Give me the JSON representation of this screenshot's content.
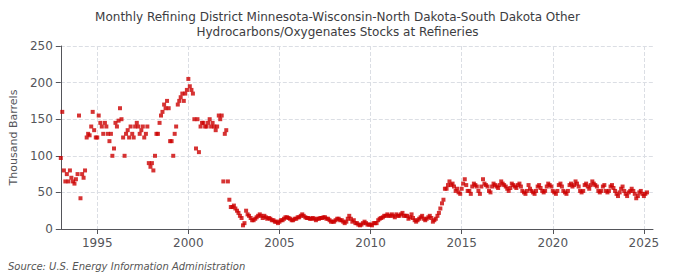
{
  "chart_data": {
    "type": "scatter",
    "title": "Monthly Refining District Minnesota-Wisconsin-North Dakota-South Dakota Other\nHydrocarbons/Oxygenates Stocks at Refineries",
    "ylabel": "Thousand Barrels",
    "annotations": [
      "Source: U.S. Energy Information Administration"
    ],
    "color": "#cc0000",
    "marker": "square",
    "grid": true,
    "xlim": [
      1993.0,
      2025.5
    ],
    "ylim": [
      0,
      250
    ],
    "xticks": [
      1995,
      2000,
      2005,
      2010,
      2015,
      2020,
      2025
    ],
    "yticks": [
      0,
      50,
      100,
      150,
      200,
      250
    ],
    "x": [
      1993.0,
      1993.08,
      1993.17,
      1993.25,
      1993.33,
      1993.42,
      1993.5,
      1993.58,
      1993.67,
      1993.75,
      1993.83,
      1993.92,
      1994.0,
      1994.08,
      1994.17,
      1994.25,
      1994.33,
      1994.42,
      1994.5,
      1994.58,
      1994.67,
      1994.75,
      1994.83,
      1994.92,
      1995.0,
      1995.08,
      1995.17,
      1995.25,
      1995.33,
      1995.42,
      1995.5,
      1995.58,
      1995.67,
      1995.75,
      1995.83,
      1995.92,
      1996.0,
      1996.08,
      1996.17,
      1996.25,
      1996.33,
      1996.42,
      1996.5,
      1996.58,
      1996.67,
      1996.75,
      1996.83,
      1996.92,
      1997.0,
      1997.08,
      1997.17,
      1997.25,
      1997.33,
      1997.42,
      1997.5,
      1997.58,
      1997.67,
      1997.75,
      1997.83,
      1997.92,
      1998.0,
      1998.08,
      1998.17,
      1998.25,
      1998.33,
      1998.42,
      1998.5,
      1998.58,
      1998.67,
      1998.75,
      1998.83,
      1998.92,
      1999.0,
      1999.08,
      1999.17,
      1999.25,
      1999.33,
      1999.42,
      1999.5,
      1999.58,
      1999.67,
      1999.75,
      1999.83,
      1999.92,
      2000.0,
      2000.08,
      2000.17,
      2000.25,
      2000.33,
      2000.42,
      2000.5,
      2000.58,
      2000.67,
      2000.75,
      2000.83,
      2000.92,
      2001.0,
      2001.08,
      2001.17,
      2001.25,
      2001.33,
      2001.42,
      2001.5,
      2001.58,
      2001.67,
      2001.75,
      2001.83,
      2001.92,
      2002.0,
      2002.08,
      2002.17,
      2002.25,
      2002.33,
      2002.42,
      2002.5,
      2002.58,
      2002.67,
      2002.75,
      2002.83,
      2002.92,
      2003.0,
      2003.08,
      2003.17,
      2003.25,
      2003.33,
      2003.42,
      2003.5,
      2003.58,
      2003.67,
      2003.75,
      2003.83,
      2003.92,
      2004.0,
      2004.08,
      2004.17,
      2004.25,
      2004.33,
      2004.42,
      2004.5,
      2004.58,
      2004.67,
      2004.75,
      2004.83,
      2004.92,
      2005.0,
      2005.08,
      2005.17,
      2005.25,
      2005.33,
      2005.42,
      2005.5,
      2005.58,
      2005.67,
      2005.75,
      2005.83,
      2005.92,
      2006.0,
      2006.08,
      2006.17,
      2006.25,
      2006.33,
      2006.42,
      2006.5,
      2006.58,
      2006.67,
      2006.75,
      2006.83,
      2006.92,
      2007.0,
      2007.08,
      2007.17,
      2007.25,
      2007.33,
      2007.42,
      2007.5,
      2007.58,
      2007.67,
      2007.75,
      2007.83,
      2007.92,
      2008.0,
      2008.08,
      2008.17,
      2008.25,
      2008.33,
      2008.42,
      2008.5,
      2008.58,
      2008.67,
      2008.75,
      2008.83,
      2008.92,
      2009.0,
      2009.08,
      2009.17,
      2009.25,
      2009.33,
      2009.42,
      2009.5,
      2009.58,
      2009.67,
      2009.75,
      2009.83,
      2009.92,
      2010.0,
      2010.08,
      2010.17,
      2010.25,
      2010.33,
      2010.42,
      2010.5,
      2010.58,
      2010.67,
      2010.75,
      2010.83,
      2010.92,
      2011.0,
      2011.08,
      2011.17,
      2011.25,
      2011.33,
      2011.42,
      2011.5,
      2011.58,
      2011.67,
      2011.75,
      2011.83,
      2011.92,
      2012.0,
      2012.08,
      2012.17,
      2012.25,
      2012.33,
      2012.42,
      2012.5,
      2012.58,
      2012.67,
      2012.75,
      2012.83,
      2012.92,
      2013.0,
      2013.08,
      2013.17,
      2013.25,
      2013.33,
      2013.42,
      2013.5,
      2013.58,
      2013.67,
      2013.75,
      2013.83,
      2013.92,
      2014.0,
      2014.08,
      2014.17,
      2014.25,
      2014.33,
      2014.42,
      2014.5,
      2014.58,
      2014.67,
      2014.75,
      2014.83,
      2014.92,
      2015.0,
      2015.08,
      2015.17,
      2015.25,
      2015.33,
      2015.42,
      2015.5,
      2015.58,
      2015.67,
      2015.75,
      2015.83,
      2015.92,
      2016.0,
      2016.08,
      2016.17,
      2016.25,
      2016.33,
      2016.42,
      2016.5,
      2016.58,
      2016.67,
      2016.75,
      2016.83,
      2016.92,
      2017.0,
      2017.08,
      2017.17,
      2017.25,
      2017.33,
      2017.42,
      2017.5,
      2017.58,
      2017.67,
      2017.75,
      2017.83,
      2017.92,
      2018.0,
      2018.08,
      2018.17,
      2018.25,
      2018.33,
      2018.42,
      2018.5,
      2018.58,
      2018.67,
      2018.75,
      2018.83,
      2018.92,
      2019.0,
      2019.08,
      2019.17,
      2019.25,
      2019.33,
      2019.42,
      2019.5,
      2019.58,
      2019.67,
      2019.75,
      2019.83,
      2019.92,
      2020.0,
      2020.08,
      2020.17,
      2020.25,
      2020.33,
      2020.42,
      2020.5,
      2020.58,
      2020.67,
      2020.75,
      2020.83,
      2020.92,
      2021.0,
      2021.08,
      2021.17,
      2021.25,
      2021.33,
      2021.42,
      2021.5,
      2021.58,
      2021.67,
      2021.75,
      2021.83,
      2021.92,
      2022.0,
      2022.08,
      2022.17,
      2022.25,
      2022.33,
      2022.42,
      2022.5,
      2022.58,
      2022.67,
      2022.75,
      2022.83,
      2022.92,
      2023.0,
      2023.08,
      2023.17,
      2023.25,
      2023.33,
      2023.42,
      2023.5,
      2023.58,
      2023.67,
      2023.75,
      2023.83,
      2023.92,
      2024.0,
      2024.08,
      2024.17,
      2024.25,
      2024.33,
      2024.42,
      2024.5,
      2024.58,
      2024.67,
      2024.75,
      2024.83,
      2024.92,
      2025.0,
      2025.08,
      2025.17
    ],
    "values": [
      97,
      160,
      80,
      65,
      75,
      65,
      80,
      70,
      65,
      62,
      68,
      75,
      155,
      42,
      75,
      70,
      80,
      125,
      130,
      128,
      140,
      160,
      135,
      125,
      125,
      155,
      145,
      140,
      130,
      145,
      140,
      130,
      120,
      130,
      100,
      110,
      145,
      140,
      148,
      165,
      150,
      125,
      100,
      130,
      135,
      125,
      140,
      130,
      125,
      140,
      145,
      140,
      130,
      135,
      140,
      125,
      130,
      140,
      90,
      85,
      90,
      80,
      100,
      130,
      130,
      145,
      155,
      160,
      170,
      165,
      175,
      165,
      120,
      120,
      100,
      130,
      140,
      170,
      175,
      180,
      185,
      175,
      185,
      190,
      205,
      195,
      190,
      185,
      150,
      110,
      150,
      105,
      140,
      145,
      145,
      140,
      140,
      145,
      150,
      140,
      145,
      140,
      135,
      140,
      155,
      150,
      155,
      65,
      130,
      135,
      65,
      40,
      30,
      30,
      32,
      28,
      25,
      22,
      18,
      15,
      5,
      8,
      25,
      20,
      18,
      15,
      12,
      12,
      14,
      16,
      18,
      20,
      18,
      15,
      18,
      16,
      14,
      15,
      14,
      12,
      12,
      10,
      10,
      8,
      10,
      12,
      12,
      14,
      16,
      16,
      15,
      14,
      12,
      12,
      14,
      14,
      16,
      16,
      18,
      20,
      18,
      16,
      15,
      15,
      14,
      14,
      15,
      14,
      12,
      14,
      14,
      15,
      15,
      16,
      16,
      14,
      14,
      12,
      10,
      10,
      10,
      12,
      14,
      14,
      12,
      12,
      10,
      8,
      10,
      14,
      18,
      14,
      10,
      12,
      8,
      8,
      6,
      5,
      6,
      8,
      10,
      8,
      6,
      6,
      6,
      5,
      8,
      8,
      8,
      12,
      14,
      15,
      16,
      18,
      18,
      20,
      18,
      18,
      20,
      18,
      16,
      20,
      18,
      18,
      20,
      22,
      18,
      18,
      18,
      14,
      16,
      20,
      15,
      12,
      10,
      12,
      14,
      16,
      18,
      14,
      12,
      14,
      16,
      18,
      15,
      10,
      12,
      14,
      18,
      22,
      28,
      35,
      40,
      55,
      55,
      60,
      65,
      60,
      62,
      58,
      52,
      55,
      50,
      48,
      55,
      62,
      68,
      60,
      52,
      52,
      48,
      58,
      62,
      60,
      58,
      52,
      48,
      58,
      68,
      62,
      60,
      58,
      52,
      50,
      58,
      62,
      60,
      58,
      56,
      60,
      65,
      62,
      60,
      58,
      55,
      52,
      56,
      62,
      60,
      58,
      56,
      60,
      62,
      58,
      52,
      50,
      48,
      52,
      60,
      55,
      52,
      50,
      48,
      52,
      58,
      60,
      56,
      52,
      50,
      52,
      58,
      62,
      60,
      58,
      52,
      50,
      48,
      52,
      60,
      62,
      58,
      52,
      50,
      48,
      52,
      60,
      62,
      58,
      60,
      65,
      62,
      58,
      52,
      50,
      52,
      60,
      62,
      58,
      55,
      60,
      65,
      62,
      60,
      58,
      52,
      50,
      52,
      58,
      60,
      52,
      50,
      52,
      58,
      60,
      56,
      52,
      48,
      45,
      50,
      55,
      58,
      52,
      48,
      45,
      50,
      52,
      55,
      52,
      48,
      42,
      45,
      50,
      52,
      48,
      45,
      48,
      50
    ]
  }
}
